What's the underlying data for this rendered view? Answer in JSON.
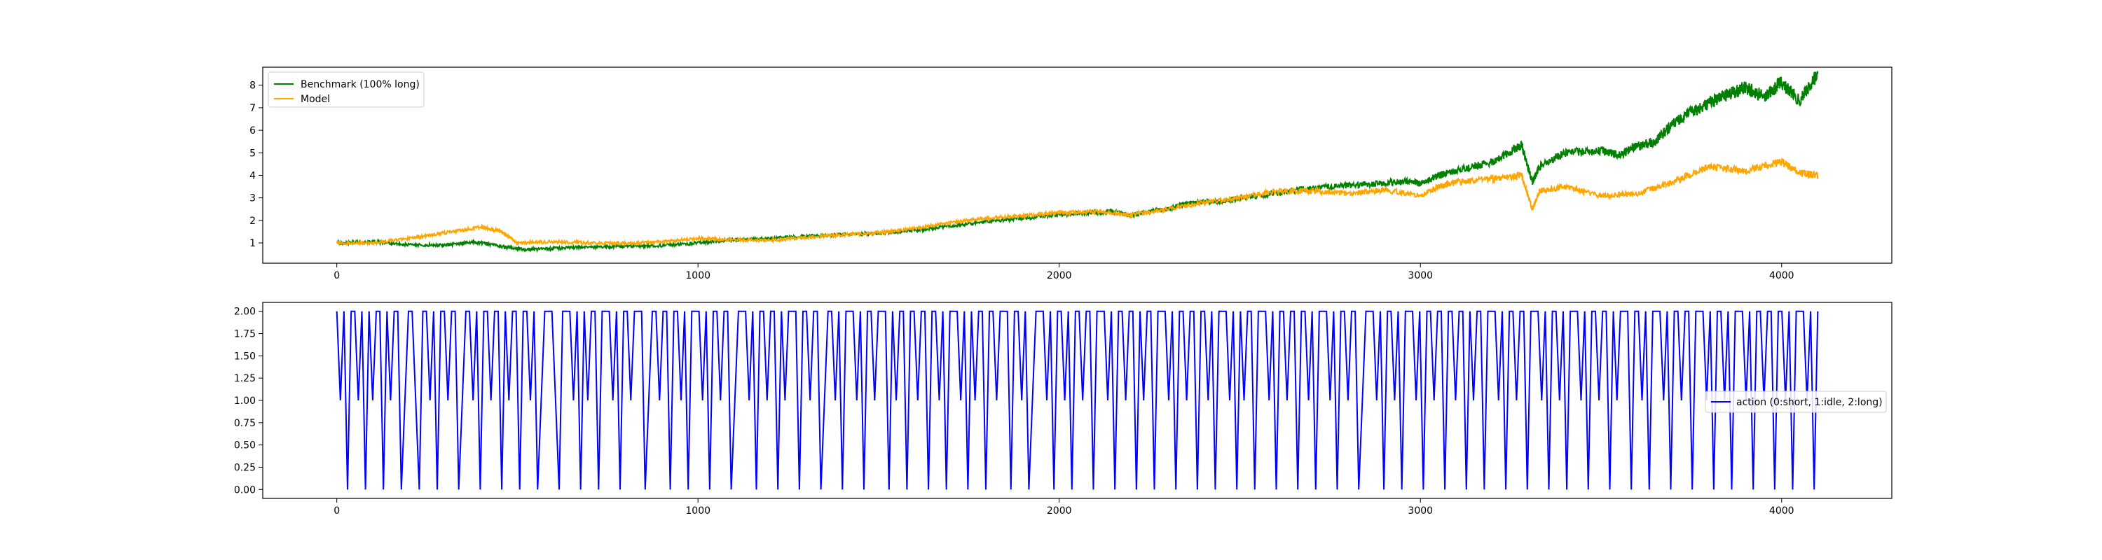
{
  "chart_data": [
    {
      "type": "line",
      "title": "",
      "xlabel": "",
      "ylabel": "",
      "xlim": [
        -205,
        4305
      ],
      "ylim": [
        0.1,
        8.8
      ],
      "xticks": [
        0,
        1000,
        2000,
        3000,
        4000
      ],
      "yticks": [
        1,
        2,
        3,
        4,
        5,
        6,
        7,
        8
      ],
      "grid": false,
      "legend": {
        "location": "upper-left"
      },
      "series": [
        {
          "name": "Benchmark (100% long)",
          "color": "#008000",
          "points": [
            [
              0,
              1.0
            ],
            [
              100,
              1.05
            ],
            [
              200,
              0.92
            ],
            [
              300,
              0.9
            ],
            [
              380,
              1.05
            ],
            [
              450,
              0.85
            ],
            [
              520,
              0.7
            ],
            [
              600,
              0.75
            ],
            [
              700,
              0.82
            ],
            [
              800,
              0.85
            ],
            [
              900,
              0.88
            ],
            [
              1000,
              1.0
            ],
            [
              1100,
              1.15
            ],
            [
              1200,
              1.2
            ],
            [
              1300,
              1.3
            ],
            [
              1400,
              1.38
            ],
            [
              1500,
              1.42
            ],
            [
              1600,
              1.55
            ],
            [
              1700,
              1.75
            ],
            [
              1800,
              1.95
            ],
            [
              1900,
              2.1
            ],
            [
              2000,
              2.25
            ],
            [
              2100,
              2.35
            ],
            [
              2150,
              2.4
            ],
            [
              2200,
              2.2
            ],
            [
              2250,
              2.4
            ],
            [
              2300,
              2.5
            ],
            [
              2350,
              2.75
            ],
            [
              2400,
              2.85
            ],
            [
              2450,
              2.82
            ],
            [
              2500,
              3.0
            ],
            [
              2600,
              3.2
            ],
            [
              2700,
              3.45
            ],
            [
              2800,
              3.55
            ],
            [
              2900,
              3.65
            ],
            [
              2980,
              3.75
            ],
            [
              3000,
              3.6
            ],
            [
              3050,
              4.0
            ],
            [
              3100,
              4.2
            ],
            [
              3200,
              4.6
            ],
            [
              3280,
              5.35
            ],
            [
              3310,
              3.7
            ],
            [
              3330,
              4.4
            ],
            [
              3400,
              5.0
            ],
            [
              3500,
              5.1
            ],
            [
              3550,
              4.9
            ],
            [
              3600,
              5.3
            ],
            [
              3650,
              5.5
            ],
            [
              3700,
              6.3
            ],
            [
              3750,
              6.8
            ],
            [
              3800,
              7.2
            ],
            [
              3850,
              7.6
            ],
            [
              3900,
              7.9
            ],
            [
              3950,
              7.5
            ],
            [
              4000,
              8.1
            ],
            [
              4050,
              7.3
            ],
            [
              4100,
              8.5
            ]
          ]
        },
        {
          "name": "Model",
          "color": "#ffa500",
          "points": [
            [
              0,
              1.0
            ],
            [
              100,
              1.0
            ],
            [
              200,
              1.2
            ],
            [
              300,
              1.45
            ],
            [
              400,
              1.7
            ],
            [
              450,
              1.55
            ],
            [
              500,
              1.0
            ],
            [
              600,
              1.05
            ],
            [
              700,
              1.0
            ],
            [
              800,
              0.98
            ],
            [
              900,
              1.05
            ],
            [
              1000,
              1.2
            ],
            [
              1100,
              1.15
            ],
            [
              1200,
              1.1
            ],
            [
              1300,
              1.25
            ],
            [
              1400,
              1.35
            ],
            [
              1500,
              1.45
            ],
            [
              1600,
              1.65
            ],
            [
              1700,
              1.9
            ],
            [
              1800,
              2.1
            ],
            [
              1900,
              2.2
            ],
            [
              2000,
              2.35
            ],
            [
              2100,
              2.4
            ],
            [
              2200,
              2.25
            ],
            [
              2300,
              2.5
            ],
            [
              2400,
              2.8
            ],
            [
              2500,
              3.0
            ],
            [
              2600,
              3.3
            ],
            [
              2700,
              3.3
            ],
            [
              2800,
              3.2
            ],
            [
              2900,
              3.35
            ],
            [
              3000,
              3.1
            ],
            [
              3050,
              3.5
            ],
            [
              3100,
              3.7
            ],
            [
              3200,
              3.85
            ],
            [
              3280,
              4.0
            ],
            [
              3310,
              2.5
            ],
            [
              3330,
              3.3
            ],
            [
              3400,
              3.5
            ],
            [
              3500,
              3.1
            ],
            [
              3600,
              3.2
            ],
            [
              3700,
              3.7
            ],
            [
              3800,
              4.4
            ],
            [
              3900,
              4.2
            ],
            [
              4000,
              4.6
            ],
            [
              4050,
              4.1
            ],
            [
              4100,
              4.0
            ]
          ]
        }
      ]
    },
    {
      "type": "line",
      "title": "",
      "xlabel": "",
      "ylabel": "",
      "xlim": [
        -205,
        4305
      ],
      "ylim": [
        -0.1,
        2.1
      ],
      "xticks": [
        0,
        1000,
        2000,
        3000,
        4000
      ],
      "yticks": [
        0.0,
        0.25,
        0.5,
        0.75,
        1.0,
        1.25,
        1.5,
        1.75,
        2.0
      ],
      "ytick_labels": [
        "0.00",
        "0.25",
        "0.50",
        "0.75",
        "1.00",
        "1.25",
        "1.50",
        "1.75",
        "2.00"
      ],
      "grid": false,
      "legend": {
        "location": "center-right"
      },
      "series": [
        {
          "name": "action (0:short, 1:idle, 2:long)",
          "color": "#0000ff",
          "x_range": [
            0,
            4100
          ],
          "values": [
            2,
            1,
            2,
            0,
            2,
            2,
            1,
            2,
            0,
            2,
            1,
            2,
            2,
            0,
            2,
            1,
            2,
            2,
            0,
            1,
            2,
            2,
            1,
            0,
            2,
            2,
            1,
            2,
            0,
            2,
            2,
            1,
            2,
            2,
            0,
            1,
            2,
            2,
            1,
            2,
            0,
            2,
            2,
            1,
            2,
            2,
            0,
            2,
            1,
            2,
            2,
            0,
            2,
            2,
            1,
            2,
            0,
            1,
            2,
            2,
            2,
            1,
            0,
            2,
            2,
            2,
            1,
            2,
            0,
            2,
            1,
            2,
            2,
            0,
            2,
            2,
            2,
            1,
            2,
            0,
            2,
            2,
            1,
            2,
            2,
            2,
            0,
            1,
            2,
            2,
            1,
            2,
            2,
            0,
            2,
            2,
            1,
            2,
            0,
            2,
            2,
            2,
            1,
            2,
            0,
            2,
            2,
            1,
            2,
            2,
            0,
            1,
            2,
            2,
            2,
            1,
            2,
            0,
            2,
            2,
            1,
            2,
            2,
            0,
            2,
            1,
            2,
            2,
            2,
            0,
            2,
            2,
            1,
            2,
            2,
            0,
            1,
            2,
            2,
            1,
            2,
            0,
            2,
            2,
            2,
            1,
            2,
            0,
            2,
            2,
            1,
            2,
            2,
            2,
            0,
            2,
            1,
            2,
            2,
            0,
            2,
            2,
            1,
            2,
            2,
            0,
            2,
            2,
            1,
            2,
            0,
            2,
            2,
            2,
            1,
            2,
            0,
            2,
            1,
            2,
            2,
            0,
            2,
            2,
            1,
            2,
            2,
            2,
            0,
            2,
            2,
            1,
            2,
            0,
            1,
            2,
            2,
            2,
            1,
            2,
            0,
            2,
            2,
            1,
            2,
            0,
            2,
            2,
            1,
            2,
            2,
            0,
            2,
            2,
            2,
            1,
            2,
            0,
            2,
            2,
            1,
            2,
            2,
            0,
            2,
            1,
            2,
            2,
            0,
            2,
            2,
            2,
            1,
            2,
            0,
            2,
            2,
            1,
            2,
            2,
            0,
            2,
            2,
            1,
            2,
            0,
            2,
            2,
            2,
            1,
            2,
            0,
            2,
            1,
            2,
            2,
            0,
            2,
            2,
            2,
            1,
            2,
            0,
            2,
            2,
            1,
            2,
            2,
            0,
            2,
            2,
            1,
            2,
            0,
            2,
            2,
            2,
            1,
            2,
            0,
            2,
            2,
            1,
            2,
            2,
            0,
            1,
            2,
            2,
            2,
            1,
            2,
            0,
            2,
            2,
            1,
            2,
            0,
            2,
            2,
            2,
            1,
            2,
            0,
            2,
            2,
            1,
            2,
            2,
            0,
            2,
            2,
            1,
            2,
            2,
            0,
            2,
            1,
            2,
            2,
            0,
            2,
            2,
            2,
            1,
            2,
            0,
            2,
            2,
            1,
            2,
            2,
            0,
            2,
            2,
            2,
            1,
            2,
            0,
            2,
            2,
            1,
            2,
            0,
            2,
            2,
            2,
            1,
            2,
            0,
            2,
            2,
            1,
            2,
            2,
            0,
            2,
            1,
            2,
            2,
            2,
            0,
            2,
            2,
            1,
            2,
            0,
            2,
            2,
            2,
            1,
            2,
            0,
            2,
            2,
            1,
            2,
            2,
            0,
            2,
            2,
            2,
            1,
            2,
            0,
            2,
            2,
            1,
            2,
            0,
            2,
            2,
            2,
            1,
            2,
            0,
            2,
            2,
            1,
            2,
            2,
            0,
            2,
            2,
            1,
            2,
            0,
            2,
            2,
            2,
            1,
            2,
            0,
            2
          ]
        }
      ]
    }
  ]
}
